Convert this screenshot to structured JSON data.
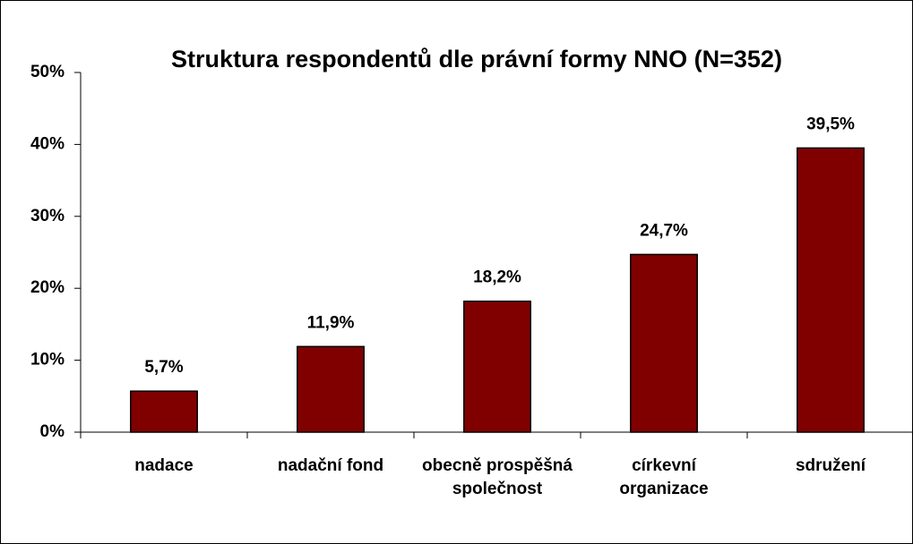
{
  "chart_data": {
    "type": "bar",
    "title": "Struktura respondentů dle právní formy NNO (N=352)",
    "categories": [
      "nadace",
      "nadační fond",
      "obecně prospěšná společnost",
      "církevní organizace",
      "sdružení"
    ],
    "values": [
      5.7,
      11.9,
      18.2,
      24.7,
      39.5
    ],
    "value_labels": [
      "5,7%",
      "11,9%",
      "18,2%",
      "24,7%",
      "39,5%"
    ],
    "color": "#800000",
    "ylim": [
      0,
      50
    ],
    "yticks": [
      {
        "value": 0,
        "label": "0%"
      },
      {
        "value": 10,
        "label": "10%"
      },
      {
        "value": 20,
        "label": "20%"
      },
      {
        "value": 30,
        "label": "30%"
      },
      {
        "value": 40,
        "label": "40%"
      },
      {
        "value": 50,
        "label": "50%"
      }
    ],
    "grid": false
  }
}
